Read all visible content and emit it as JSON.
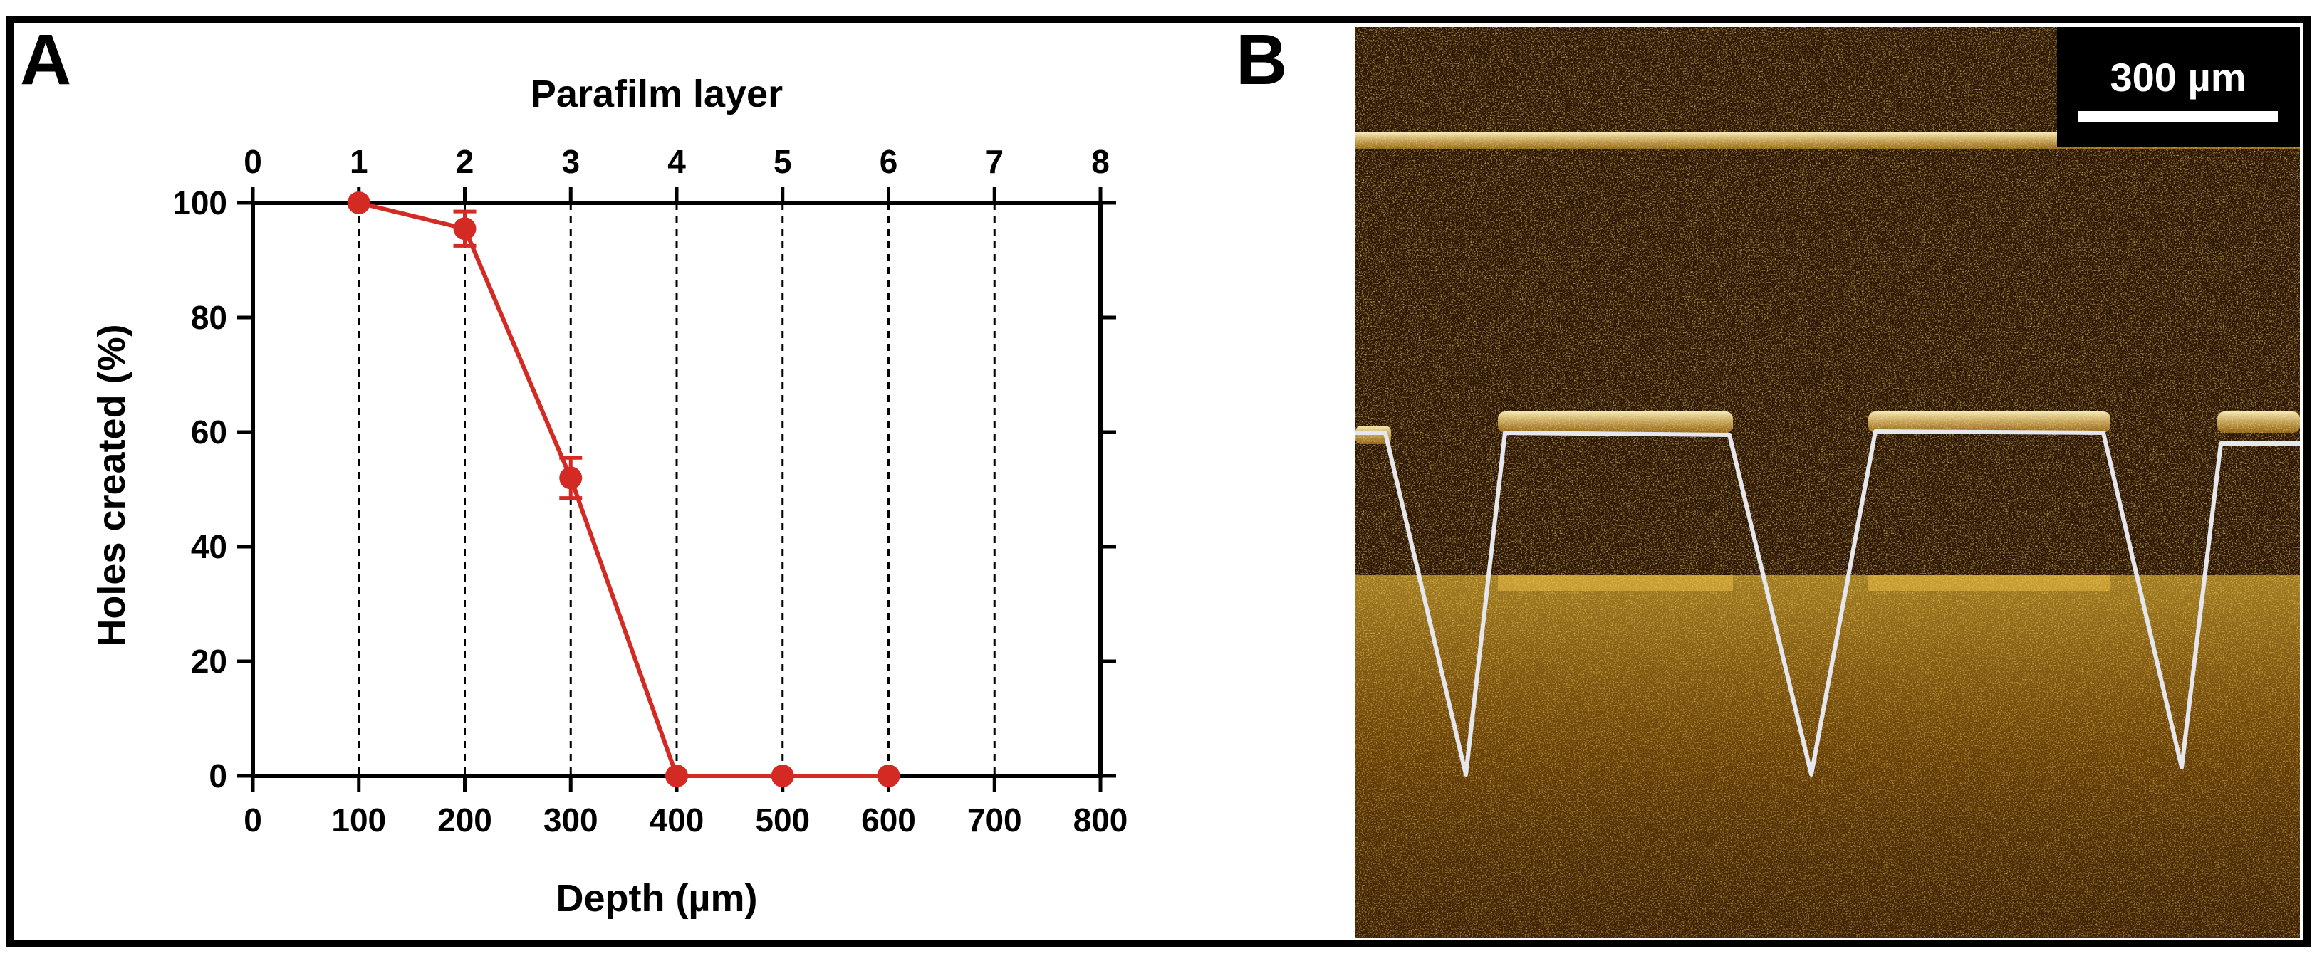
{
  "panels": {
    "a_letter": "A",
    "b_letter": "B"
  },
  "chart_data": {
    "type": "line",
    "xlabel": "Depth (µm)",
    "x2label": "Parafilm layer",
    "ylabel": "Holes created (%)",
    "xlim": [
      0,
      800
    ],
    "x2lim": [
      0,
      8
    ],
    "ylim": [
      0,
      100
    ],
    "x_ticks": [
      "0",
      "100",
      "200",
      "300",
      "400",
      "500",
      "600",
      "700",
      "800"
    ],
    "x2_ticks": [
      "0",
      "1",
      "2",
      "3",
      "4",
      "5",
      "6",
      "7",
      "8"
    ],
    "y_ticks": [
      "0",
      "20",
      "40",
      "60",
      "80",
      "100"
    ],
    "grid": "vertical dashed lines",
    "series": [
      {
        "x": [
          100,
          200,
          300,
          400,
          500,
          600
        ],
        "y": [
          100,
          95.5,
          52,
          0,
          0,
          0
        ],
        "error": [
          0,
          3,
          3.5,
          0,
          0,
          0
        ],
        "color": "#d42a24"
      }
    ]
  },
  "oct_image": {
    "scale_bar_label": "300 µm",
    "overlay_color": "#e6e6ee"
  }
}
